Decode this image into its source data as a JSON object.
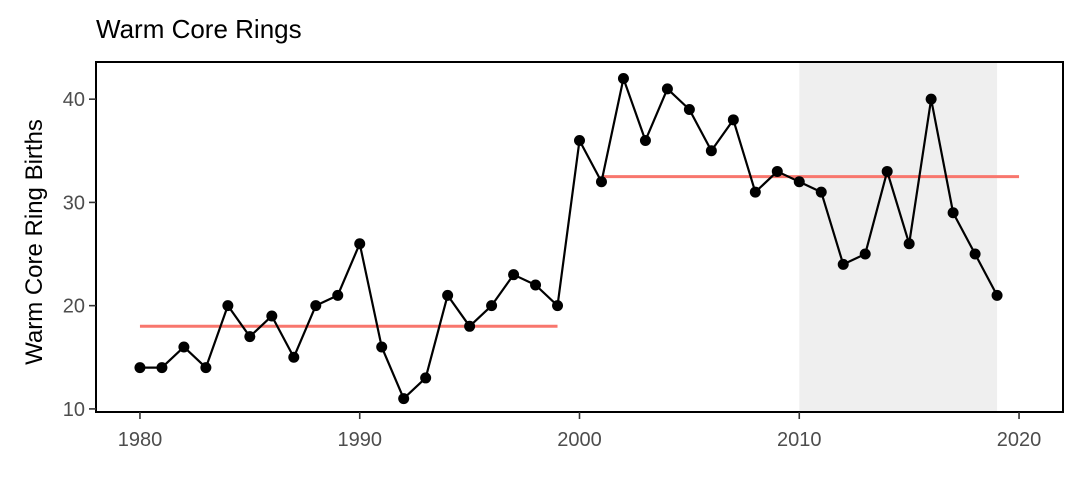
{
  "chart_data": {
    "type": "line",
    "title": "Warm Core Rings",
    "xlabel": "",
    "ylabel": "Warm Core Ring Births",
    "xlim": [
      1978,
      2022
    ],
    "ylim": [
      9.7,
      43.6
    ],
    "x_ticks": [
      1980,
      1990,
      2000,
      2010,
      2020
    ],
    "y_ticks": [
      10,
      20,
      30,
      40
    ],
    "grid": false,
    "series": [
      {
        "x": [
          1980,
          1981,
          1982,
          1983,
          1984,
          1985,
          1986,
          1987,
          1988,
          1989,
          1990,
          1991,
          1992,
          1993,
          1994,
          1995,
          1996,
          1997,
          1998,
          1999,
          2000,
          2001,
          2002,
          2003,
          2004,
          2005,
          2006,
          2007,
          2008,
          2009,
          2010,
          2011,
          2012,
          2013,
          2014,
          2015,
          2016,
          2017,
          2018,
          2019,
          2020
        ],
        "values": [
          14,
          14,
          16,
          14,
          20,
          17,
          19,
          15,
          20,
          21,
          26,
          16,
          11,
          13,
          21,
          18,
          20,
          23,
          22,
          20,
          36,
          32,
          42,
          36,
          41,
          39,
          35,
          38,
          31,
          33,
          32,
          31,
          24,
          25,
          33,
          26,
          40,
          29,
          25,
          21,
          null
        ],
        "color": "#000000"
      }
    ],
    "mean_segments": [
      {
        "x_start": 1980,
        "x_end": 1999,
        "y": 18.0,
        "color": "#f8766d"
      },
      {
        "x_start": 2001,
        "x_end": 2020,
        "y": 32.5,
        "color": "#f8766d"
      }
    ],
    "shaded_region": {
      "x_start": 2010,
      "x_end": 2019,
      "color": "#efefef"
    },
    "legend": "none"
  }
}
